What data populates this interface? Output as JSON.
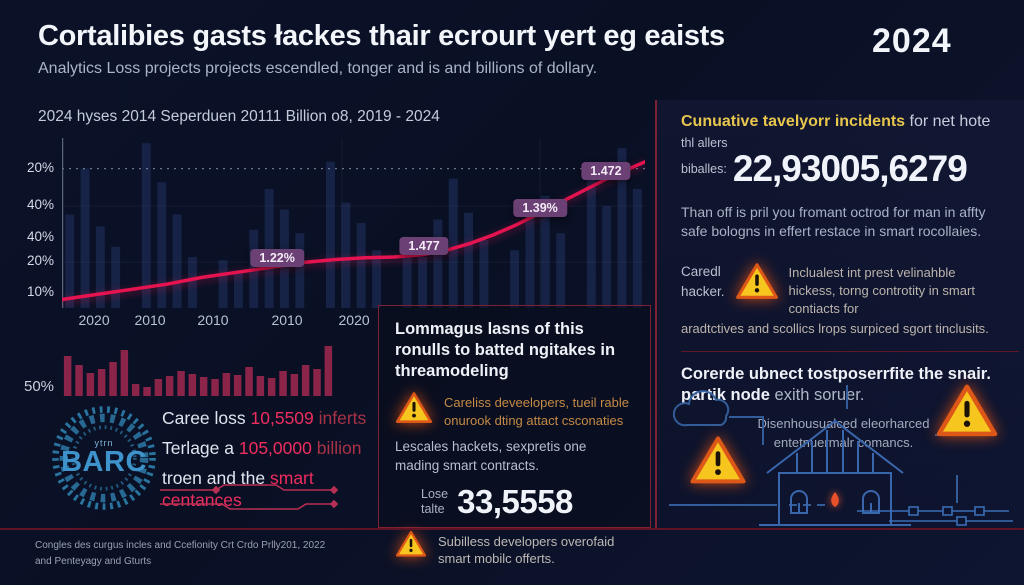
{
  "header": {
    "title": "Cortalibies gasts łackes thair ecrourt yert eg eaists",
    "subtitle": "Analytics Loss projects projects escendled, tonger and is and billions of dollary.",
    "year": "2024"
  },
  "colors": {
    "accent_line": "#e5134f",
    "annotation_bg": "#6b4175",
    "warning_yellow": "#f6c51e",
    "divider_red": "#7e2135",
    "bars_blue": "#18264a",
    "bars_maroon": "#8a2449",
    "gear_teal": "#2e7fae"
  },
  "chart_data": [
    {
      "type": "line",
      "title": "2024 hyses 2014 Seperduen 20111 Billion o8, 2019 - 2024",
      "y_ticks": [
        {
          "label": "20%",
          "pos": 0.18
        },
        {
          "label": "40%",
          "pos": 0.4
        },
        {
          "label": "40%",
          "pos": 0.59
        },
        {
          "label": "20%",
          "pos": 0.73
        },
        {
          "label": "10%",
          "pos": 0.91
        }
      ],
      "x_ticks": [
        {
          "label": "2020",
          "pos": 0.055
        },
        {
          "label": "2010",
          "pos": 0.151
        },
        {
          "label": "2010",
          "pos": 0.259
        },
        {
          "label": "2010",
          "pos": 0.386
        },
        {
          "label": "2020",
          "pos": 0.501
        }
      ],
      "dotted_gridline_y": 0.18,
      "line_color": "#e5134f",
      "line_points": [
        [
          0,
          0.95
        ],
        [
          0.06,
          0.92
        ],
        [
          0.12,
          0.89
        ],
        [
          0.18,
          0.86
        ],
        [
          0.24,
          0.82
        ],
        [
          0.3,
          0.79
        ],
        [
          0.36,
          0.76
        ],
        [
          0.42,
          0.73
        ],
        [
          0.47,
          0.715
        ],
        [
          0.52,
          0.705
        ],
        [
          0.57,
          0.7
        ],
        [
          0.62,
          0.685
        ],
        [
          0.66,
          0.66
        ],
        [
          0.7,
          0.62
        ],
        [
          0.74,
          0.57
        ],
        [
          0.78,
          0.51
        ],
        [
          0.82,
          0.44
        ],
        [
          0.86,
          0.37
        ],
        [
          0.9,
          0.3
        ],
        [
          0.94,
          0.23
        ],
        [
          1.0,
          0.14
        ]
      ],
      "annotations": [
        {
          "label": "1.22%",
          "x": 0.369,
          "y": 0.706
        },
        {
          "label": "1.477",
          "x": 0.621,
          "y": 0.635
        },
        {
          "label": "1.39%",
          "x": 0.82,
          "y": 0.412
        },
        {
          "label": "1.472",
          "x": 0.933,
          "y": 0.194
        }
      ],
      "background_bars": {
        "color": "#18264a",
        "heights": [
          0.55,
          0.82,
          0.48,
          0.36,
          0,
          0.97,
          0.74,
          0.55,
          0.3,
          0,
          0.28,
          0.22,
          0.46,
          0.7,
          0.58,
          0.44,
          0,
          0.86,
          0.62,
          0.5,
          0.34,
          0,
          0.42,
          0.3,
          0.52,
          0.76,
          0.56,
          0.4,
          0,
          0.34,
          0.58,
          0.66,
          0.44,
          0,
          0.82,
          0.6,
          0.94,
          0.7
        ]
      },
      "legend": "none",
      "grid": "faint"
    },
    {
      "type": "bar",
      "bar_color": "#8a2449",
      "y_tick_labels": [
        "50%"
      ],
      "heights": [
        0.8,
        0.62,
        0.46,
        0.54,
        0.68,
        0.92,
        0.24,
        0.18,
        0.34,
        0.4,
        0.5,
        0.44,
        0.38,
        0.34,
        0.46,
        0.42,
        0.58,
        0.4,
        0.36,
        0.5,
        0.44,
        0.62,
        0.54,
        1.0
      ]
    }
  ],
  "left_bottom": {
    "pct_label": "50%",
    "gear_small": "ytrn",
    "gear_label": "BARC",
    "line1": {
      "w": "Caree loss ",
      "pink": "10,5509 ",
      "red": "inferts"
    },
    "line2": {
      "w": "Terlage a ",
      "pink": "105,0000 ",
      "red": "billion"
    },
    "line3": {
      "w": "troen and the ",
      "red": "smart centances"
    }
  },
  "middle_panel": {
    "title": "Lommagus lasns of this ronulls to batted ngitakes in threamodeling",
    "warn1_text": "Careliss deveelopers, tueil rable onurook dting attact csconaties",
    "body1": "Lescales hackets, sexpretis one mading smart contracts.",
    "lose_label_1": "Lose",
    "lose_label_2": "talte",
    "lose_value": "33,5558",
    "warn2_text": "Subilless developers overofaid smart mobilc offerts."
  },
  "right_top": {
    "heading_highlight": "Cunuative tavelyorr incidents",
    "heading_rest": " for net hote",
    "sub1": "thl allers",
    "sub2": "biballes:",
    "big_number": "22,93005,6279",
    "paragraph": "Than off is pril you fromant octrod for man in affty safe bologns in effert restace in smart rocollaies.",
    "caredl_1": "Caredl",
    "caredl_2": "hacker.",
    "warn_text_12": "Inclualest int prest velinahble hickess, torng controtity in smart contiacts for",
    "warn_text_3": "aradtctives and scollics lrops surpiced sgort tinclusits."
  },
  "right_bottom": {
    "title_bold": "Corerde ubnect tostposerrfite the snair.",
    "title_bold2": "partik node",
    "title_light": " exith soruer.",
    "caption_1": "Disenhousualced eleorharced",
    "caption_2": "entetnuermalr comancs."
  },
  "footer": {
    "line1": "Congles des curgus incles and Ccefionity Crt Crdo Prlly201, 2022",
    "line2": "and Penteyagy and Gturts"
  }
}
